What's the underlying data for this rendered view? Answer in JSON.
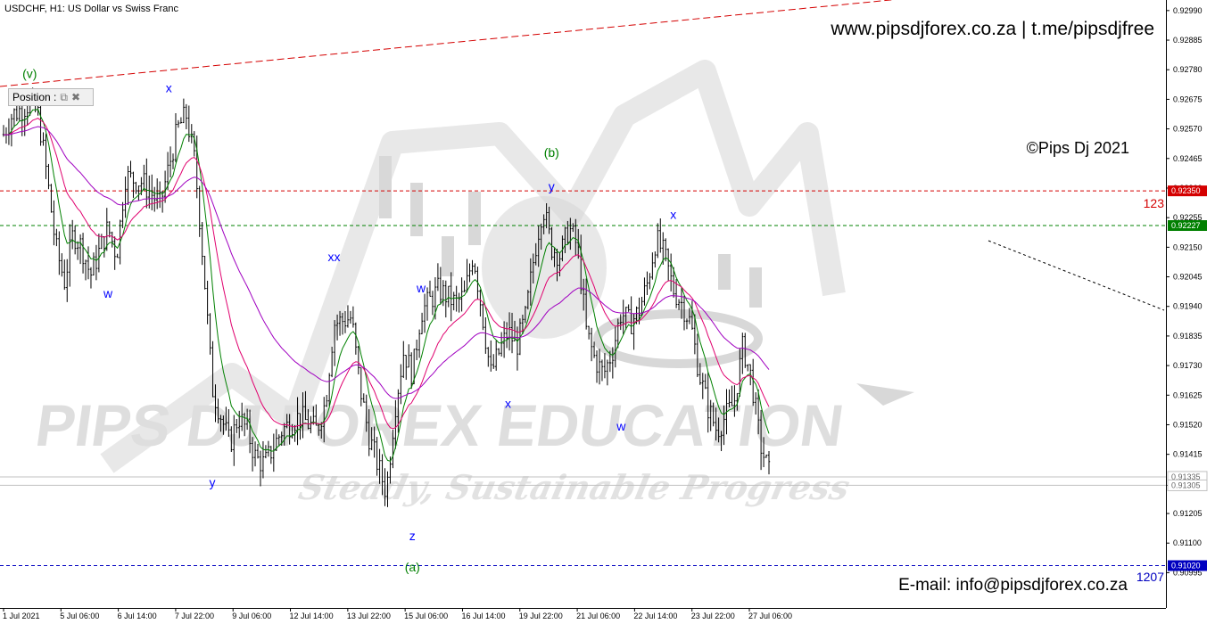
{
  "header": {
    "symbol": "USDCHF, H1:  US Dollar vs Swiss Franc",
    "website": "www.pipsdjforex.co.za  |  t.me/pipsdjfree",
    "copyright": "©Pips Dj 2021",
    "email": "E-mail: info@pipsdjforex.co.za"
  },
  "watermark": {
    "brand": "PIPS DJ FOREX EDUCATION",
    "slogan": "Steady, Sustainable Progress"
  },
  "position_panel": {
    "label": "Position :",
    "restore_icon": "restore-icon",
    "close_icon": "close-icon"
  },
  "chart_data": {
    "type": "candlestick",
    "title": "USDCHF, H1:  US Dollar vs Swiss Franc",
    "ylim": [
      0.9099,
      0.9298
    ],
    "y_ticks": [
      "0.92990",
      "0.92885",
      "0.92780",
      "0.92675",
      "0.92570",
      "0.92465",
      "0.92360",
      "0.92255",
      "0.92150",
      "0.92045",
      "0.91940",
      "0.91835",
      "0.91730",
      "0.91625",
      "0.91520",
      "0.91415",
      "0.91305",
      "0.91205",
      "0.91100",
      "0.90995"
    ],
    "x_ticks": [
      "1 Jul 2021",
      "5 Jul 06:00",
      "6 Jul 14:00",
      "7 Jul 22:00",
      "9 Jul 06:00",
      "12 Jul 14:00",
      "13 Jul 22:00",
      "15 Jul 06:00",
      "16 Jul 14:00",
      "19 Jul 22:00",
      "21 Jul 06:00",
      "22 Jul 14:00",
      "23 Jul 22:00",
      "27 Jul 06:00"
    ],
    "price_path": [
      [
        0,
        0.9255
      ],
      [
        1,
        0.9262
      ],
      [
        3,
        0.9266
      ],
      [
        4,
        0.9262
      ],
      [
        5,
        0.924
      ],
      [
        6,
        0.9215
      ],
      [
        7,
        0.9203
      ],
      [
        8,
        0.922
      ],
      [
        9,
        0.9215
      ],
      [
        10,
        0.9205
      ],
      [
        12,
        0.9222
      ],
      [
        13,
        0.9212
      ],
      [
        14,
        0.924
      ],
      [
        16,
        0.9238
      ],
      [
        18,
        0.923
      ],
      [
        20,
        0.9257
      ],
      [
        21,
        0.9262
      ],
      [
        22,
        0.9245
      ],
      [
        23,
        0.9208
      ],
      [
        24,
        0.9165
      ],
      [
        26,
        0.9145
      ],
      [
        27,
        0.9155
      ],
      [
        28,
        0.915
      ],
      [
        29,
        0.914
      ],
      [
        30,
        0.9138
      ],
      [
        32,
        0.915
      ],
      [
        34,
        0.9155
      ],
      [
        36,
        0.915
      ],
      [
        37,
        0.916
      ],
      [
        38,
        0.9188
      ],
      [
        40,
        0.919
      ],
      [
        41,
        0.9165
      ],
      [
        42,
        0.9148
      ],
      [
        43,
        0.9138
      ],
      [
        44,
        0.9128
      ],
      [
        45,
        0.9158
      ],
      [
        46,
        0.9178
      ],
      [
        47,
        0.917
      ],
      [
        48,
        0.9192
      ],
      [
        50,
        0.92
      ],
      [
        52,
        0.9195
      ],
      [
        53,
        0.9198
      ],
      [
        54,
        0.9213
      ],
      [
        55,
        0.9192
      ],
      [
        56,
        0.917
      ],
      [
        57,
        0.9178
      ],
      [
        58,
        0.9185
      ],
      [
        59,
        0.918
      ],
      [
        60,
        0.919
      ],
      [
        61,
        0.9212
      ],
      [
        62,
        0.923
      ],
      [
        63,
        0.9215
      ],
      [
        64,
        0.9212
      ],
      [
        65,
        0.9222
      ],
      [
        66,
        0.9215
      ],
      [
        67,
        0.9185
      ],
      [
        68,
        0.9175
      ],
      [
        69,
        0.917
      ],
      [
        70,
        0.9178
      ],
      [
        71,
        0.9192
      ],
      [
        72,
        0.9188
      ],
      [
        73,
        0.9192
      ],
      [
        74,
        0.9202
      ],
      [
        75,
        0.9218
      ],
      [
        76,
        0.9212
      ],
      [
        77,
        0.92
      ],
      [
        78,
        0.9195
      ],
      [
        79,
        0.9188
      ],
      [
        80,
        0.917
      ],
      [
        81,
        0.9158
      ],
      [
        82,
        0.915
      ],
      [
        83,
        0.9155
      ],
      [
        84,
        0.916
      ],
      [
        85,
        0.918
      ],
      [
        86,
        0.9168
      ],
      [
        87,
        0.9145
      ],
      [
        88,
        0.9135
      ]
    ],
    "bar_count": 88,
    "wave_labels": [
      {
        "text": "(v)",
        "bar": 3,
        "price": 0.9275,
        "color": "#008000"
      },
      {
        "text": "x",
        "bar": 19,
        "price": 0.927,
        "color": "#0000ff"
      },
      {
        "text": "w",
        "bar": 12,
        "price": 0.9197,
        "color": "#0000ff"
      },
      {
        "text": "xx",
        "bar": 38,
        "price": 0.921,
        "color": "#0000ff"
      },
      {
        "text": "y",
        "bar": 24,
        "price": 0.913,
        "color": "#0000ff"
      },
      {
        "text": "w",
        "bar": 48,
        "price": 0.9199,
        "color": "#0000ff"
      },
      {
        "text": "z",
        "bar": 47,
        "price": 0.9111,
        "color": "#0000ff"
      },
      {
        "text": "(b)",
        "bar": 63,
        "price": 0.9247,
        "color": "#008000"
      },
      {
        "text": "y",
        "bar": 63,
        "price": 0.9235,
        "color": "#0000ff"
      },
      {
        "text": "x",
        "bar": 58,
        "price": 0.9158,
        "color": "#0000ff"
      },
      {
        "text": "w",
        "bar": 71,
        "price": 0.915,
        "color": "#0000ff"
      },
      {
        "text": "x",
        "bar": 77,
        "price": 0.9225,
        "color": "#0000ff"
      },
      {
        "text": "(a)",
        "bar": 47,
        "price": 0.91,
        "color": "#008000"
      }
    ],
    "levels": [
      {
        "name": "123",
        "price": 0.9235,
        "label": "0.92350",
        "color": "#d40000",
        "style": "dash"
      },
      {
        "name": "",
        "price": 0.92227,
        "label": "0.92227",
        "color": "#008000",
        "style": "dash"
      },
      {
        "name": "",
        "price": 0.91335,
        "label": "0.91335",
        "color": "#c0c0c0",
        "style": "solid"
      },
      {
        "name": "",
        "price": 0.91305,
        "label": "0.91305",
        "color": "#c0c0c0",
        "style": "solid"
      },
      {
        "name": "1207",
        "price": 0.9102,
        "label": "0.91020",
        "color": "#0000c0",
        "style": "dash"
      }
    ],
    "level_names": {
      "level_123": "123",
      "level_1207": "1207"
    },
    "colors": {
      "candles": "#000000",
      "ma_fast": "#008000",
      "ma_mid": "#e0006e",
      "ma_slow": "#a000c0",
      "trend_top": "#d40000",
      "trend_projection": "#000000"
    }
  }
}
